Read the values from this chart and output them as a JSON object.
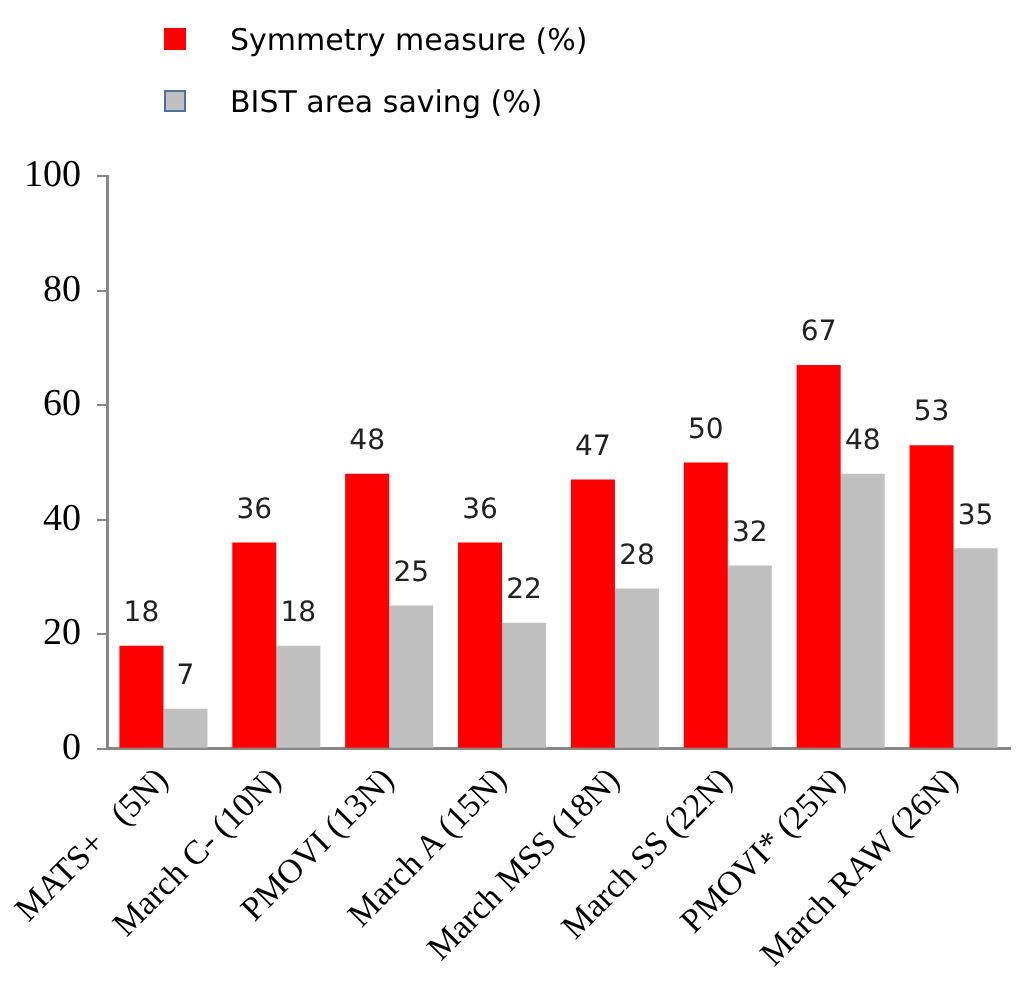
{
  "chart_data": {
    "type": "bar",
    "categories": [
      "MATS+   (5N)",
      "March C- (10N)",
      "PMOVI (13N)",
      "March A (15N)",
      "March MSS (18N)",
      "March SS (22N)",
      "PMOVI* (25N)",
      "March RAW (26N)"
    ],
    "series": [
      {
        "name": "Symmetry measure (%)",
        "color": "#ff0000",
        "values": [
          18,
          36,
          48,
          36,
          47,
          50,
          67,
          53
        ]
      },
      {
        "name": "BIST area saving (%)",
        "color": "#c0c0c0",
        "values": [
          7,
          18,
          25,
          22,
          28,
          32,
          48,
          35
        ]
      }
    ],
    "ylim": [
      0,
      100
    ],
    "yticks": [
      0,
      20,
      40,
      60,
      80,
      100
    ],
    "grid": false,
    "legend": "top left",
    "data_labels": true
  }
}
